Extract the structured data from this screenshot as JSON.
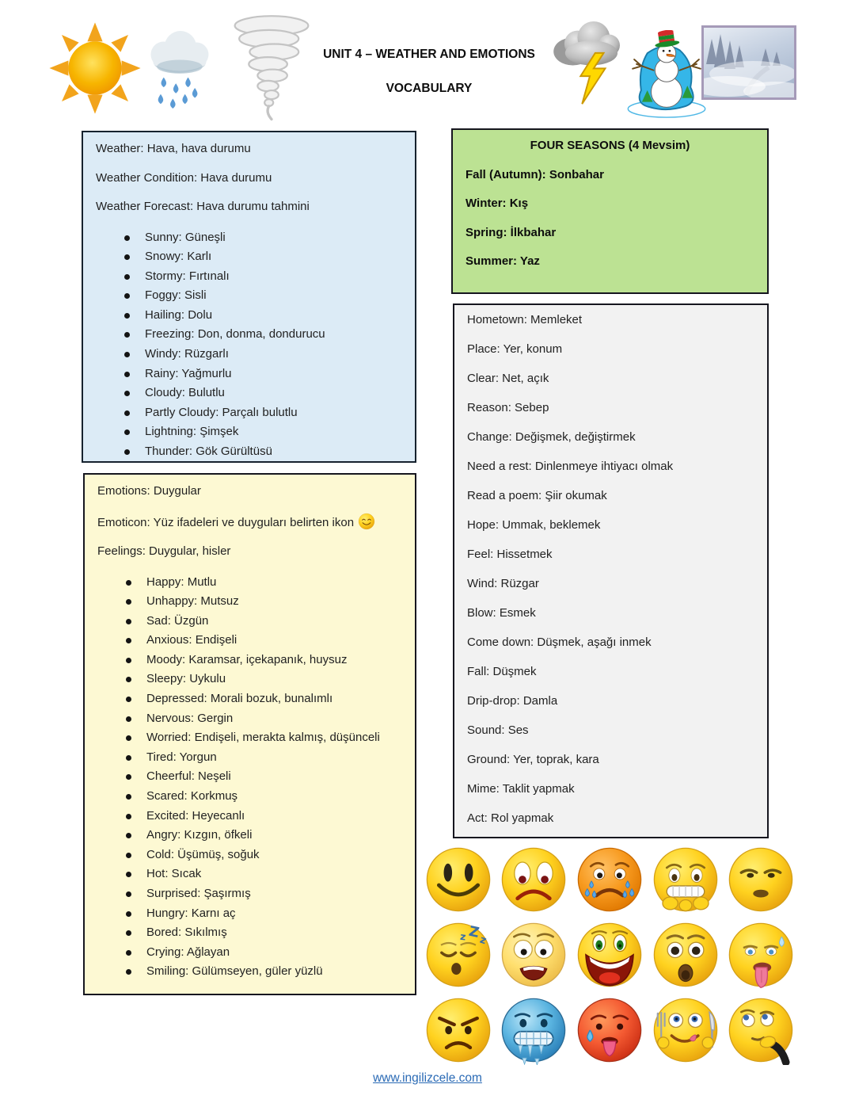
{
  "header": {
    "title": "UNIT 4 – WEATHER AND EMOTIONS",
    "subtitle": "VOCABULARY",
    "icons": [
      "sun-icon",
      "rain-cloud-icon",
      "tornado-icon",
      "storm-cloud-icon",
      "snowman-icon",
      "winter-photo-image"
    ]
  },
  "weather_box": {
    "intro": [
      "Weather: Hava, hava durumu",
      "Weather Condition: Hava durumu",
      "Weather Forecast: Hava durumu tahmini"
    ],
    "items": [
      "Sunny: Güneşli",
      "Snowy: Karlı",
      "Stormy: Fırtınalı",
      "Foggy: Sisli",
      "Hailing: Dolu",
      "Freezing: Don, donma, dondurucu",
      "Windy: Rüzgarlı",
      "Rainy: Yağmurlu",
      "Cloudy: Bulutlu",
      "Partly Cloudy: Parçalı bulutlu",
      "Lightning: Şimşek",
      "Thunder: Gök Gürültüsü"
    ]
  },
  "seasons_box": {
    "title": "FOUR SEASONS (4 Mevsim)",
    "items": [
      "Fall (Autumn): Sonbahar",
      "Winter: Kış",
      "Spring: İlkbahar",
      "Summer: Yaz"
    ]
  },
  "misc_box": {
    "items": [
      "Hometown: Memleket",
      "Place: Yer, konum",
      "Clear: Net, açık",
      "Reason: Sebep",
      "Change: Değişmek, değiştirmek",
      "Need a rest: Dinlenmeye ihtiyacı olmak",
      "Read a poem: Şiir okumak",
      "Hope: Ummak, beklemek",
      "Feel: Hissetmek",
      "Wind: Rüzgar",
      "Blow: Esmek",
      "Come down: Düşmek, aşağı inmek",
      "Fall: Düşmek",
      "Drip-drop: Damla",
      "Sound: Ses",
      "Ground: Yer, toprak, kara",
      "Mime: Taklit yapmak",
      "Act: Rol yapmak"
    ]
  },
  "emotions_box": {
    "intro": [
      "Emotions: Duygular",
      "Emoticon: Yüz ifadeleri ve duyguları belirten ikon",
      "Feelings: Duygular, hisler"
    ],
    "items": [
      "Happy: Mutlu",
      "Unhappy: Mutsuz",
      "Sad: Üzgün",
      "Anxious: Endişeli",
      "Moody: Karamsar, içekapanık, huysuz",
      "Sleepy: Uykulu",
      "Depressed: Morali bozuk, bunalımlı",
      "Nervous: Gergin",
      "Worried: Endişeli, merakta kalmış, düşünceli",
      "Tired: Yorgun",
      "Cheerful: Neşeli",
      "Scared: Korkmuş",
      "Excited: Heyecanlı",
      "Angry: Kızgın, öfkeli",
      "Cold: Üşümüş, soğuk",
      "Hot: Sıcak",
      "Surprised: Şaşırmış",
      "Hungry: Karnı aç",
      "Bored: Sıkılmış",
      "Crying: Ağlayan",
      "Smiling: Gülümseyen, güler yüzlü"
    ]
  },
  "emojis": [
    {
      "name": "happy-emoji-icon",
      "kind": "happy"
    },
    {
      "name": "unhappy-emoji-icon",
      "kind": "unhappy"
    },
    {
      "name": "crying-emoji-icon",
      "kind": "crying"
    },
    {
      "name": "nervous-emoji-icon",
      "kind": "nervous"
    },
    {
      "name": "moody-emoji-icon",
      "kind": "moody"
    },
    {
      "name": "sleepy-emoji-icon",
      "kind": "sleepy"
    },
    {
      "name": "scared-emoji-icon",
      "kind": "scared"
    },
    {
      "name": "cheerful-emoji-icon",
      "kind": "cheerful"
    },
    {
      "name": "surprised-emoji-icon",
      "kind": "surprised"
    },
    {
      "name": "tired-emoji-icon",
      "kind": "exhausted"
    },
    {
      "name": "angry-emoji-icon",
      "kind": "angry"
    },
    {
      "name": "cold-emoji-icon",
      "kind": "cold"
    },
    {
      "name": "hot-emoji-icon",
      "kind": "hot"
    },
    {
      "name": "hungry-emoji-icon",
      "kind": "hungry"
    },
    {
      "name": "bored-thinking-emoji-icon",
      "kind": "thinking"
    }
  ],
  "colors": {
    "weather_box_bg": "#dcebf6",
    "seasons_box_bg": "#bce293",
    "misc_box_bg": "#f2f2f2",
    "emotions_box_bg": "#fdf9d3",
    "link_blue": "#2a6ab5"
  },
  "footer": {
    "link": "www.ingilizcele.com"
  }
}
